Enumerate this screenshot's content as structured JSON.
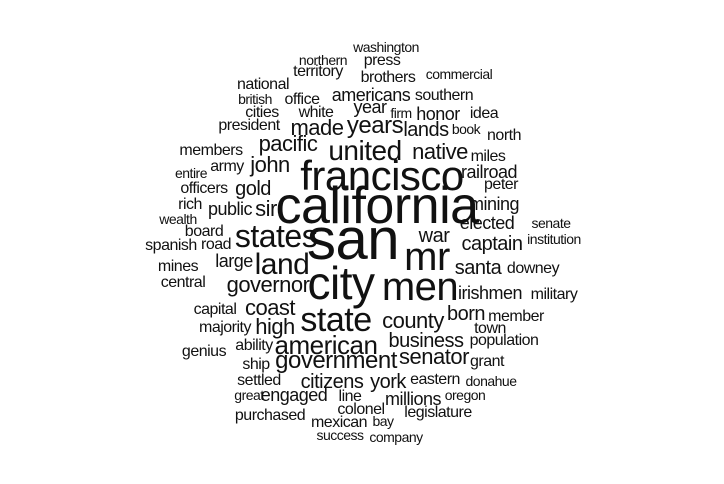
{
  "words": [
    "washington",
    "northern",
    "press",
    "territory",
    "brothers",
    "commercial",
    "national",
    "british",
    "office",
    "americans",
    "southern",
    "cities",
    "white",
    "year",
    "firm",
    "honor",
    "idea",
    "president",
    "made",
    "years",
    "lands",
    "book",
    "north",
    "pacific",
    "united",
    "native",
    "members",
    "john",
    "army",
    "miles",
    "francisco",
    "railroad",
    "entire",
    "officers",
    "gold",
    "peter",
    "california",
    "rich",
    "public",
    "sir",
    "mining",
    "wealth",
    "elected",
    "senate",
    "board",
    "san",
    "states",
    "institution",
    "spanish",
    "road",
    "war",
    "captain",
    "mines",
    "large",
    "land",
    "mr",
    "santa",
    "downey",
    "central",
    "governor",
    "city",
    "men",
    "irishmen",
    "military",
    "capital",
    "coast",
    "majority",
    "high",
    "state",
    "county",
    "born",
    "member",
    "town",
    "genius",
    "ability",
    "american",
    "business",
    "population",
    "ship",
    "government",
    "senator",
    "grant",
    "settled",
    "citizens",
    "york",
    "eastern",
    "donahue",
    "great",
    "engaged",
    "line",
    "oregon",
    "millions",
    "purchased",
    "colonel",
    "legislature",
    "mexican",
    "bay",
    "success",
    "company"
  ],
  "colors": {
    "text": "#111111",
    "background": "#ffffff"
  }
}
